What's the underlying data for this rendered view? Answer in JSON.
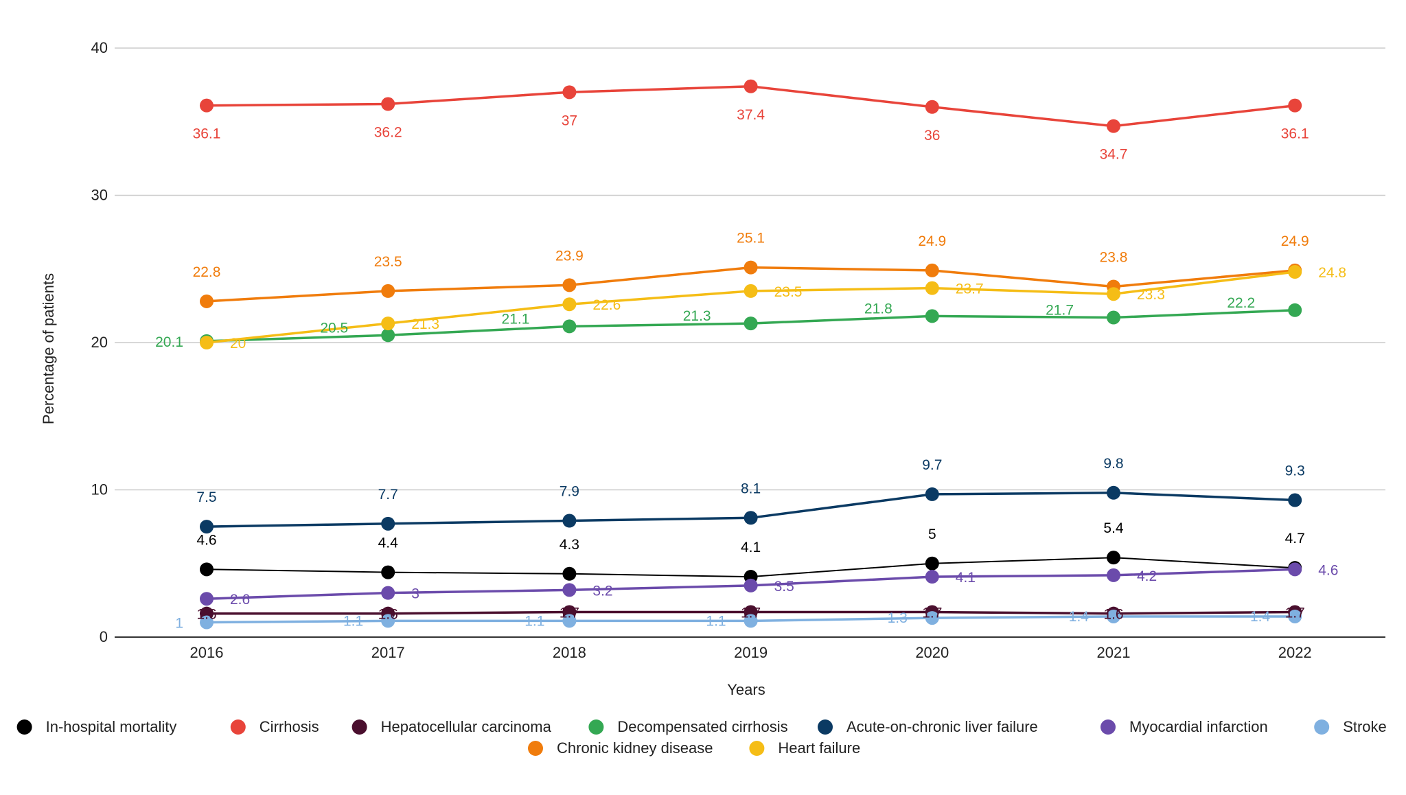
{
  "chart_data": {
    "type": "line",
    "title": "",
    "xlabel": "Years",
    "ylabel": "Percentage of patients",
    "x": [
      "2016",
      "2017",
      "2018",
      "2019",
      "2020",
      "2021",
      "2022"
    ],
    "yticks": [
      "0",
      "10",
      "20",
      "30",
      "40"
    ],
    "ylim": [
      0,
      40
    ],
    "grid": true,
    "legend_position": "bottom",
    "series": [
      {
        "name": "In-hospital mortality",
        "color": "#000000",
        "values": [
          4.6,
          4.4,
          4.3,
          4.1,
          5,
          5.4,
          4.7
        ],
        "labels": [
          "4.6",
          "4.4",
          "4.3",
          "4.1",
          "5",
          "5.4",
          "4.7"
        ]
      },
      {
        "name": "Cirrhosis",
        "color": "#e8443a",
        "values": [
          36.1,
          36.2,
          37,
          37.4,
          36,
          34.7,
          36.1
        ],
        "labels": [
          "36.1",
          "36.2",
          "37",
          "37.4",
          "36",
          "34.7",
          "36.1"
        ]
      },
      {
        "name": "Hepatocellular carcinoma",
        "color": "#4a0f2e",
        "values": [
          1.6,
          1.6,
          1.7,
          1.7,
          1.7,
          1.6,
          1.7
        ],
        "labels": [
          "1.6",
          "1.6",
          "1.7",
          "1.7",
          "1.7",
          "1.6",
          "1.7"
        ]
      },
      {
        "name": "Decompensated cirrhosis",
        "color": "#34a853",
        "values": [
          20.1,
          20.5,
          21.1,
          21.3,
          21.8,
          21.7,
          22.2
        ],
        "labels": [
          "20.1",
          "20.5",
          "21.1",
          "21.3",
          "21.8",
          "21.7",
          "22.2"
        ]
      },
      {
        "name": "Acute-on-chronic liver failure",
        "color": "#0b3a63",
        "values": [
          7.5,
          7.7,
          7.9,
          8.1,
          9.7,
          9.8,
          9.3
        ],
        "labels": [
          "7.5",
          "7.7",
          "7.9",
          "8.1",
          "9.7",
          "9.8",
          "9.3"
        ]
      },
      {
        "name": "Myocardial infarction",
        "color": "#6b4bab",
        "values": [
          2.6,
          3,
          3.2,
          3.5,
          4.1,
          4.2,
          4.6
        ],
        "labels": [
          "2.6",
          "3",
          "3.2",
          "3.5",
          "4.1",
          "4.2",
          "4.6"
        ]
      },
      {
        "name": "Stroke",
        "color": "#7fb0e0",
        "values": [
          1,
          1.1,
          1.1,
          1.1,
          1.3,
          1.4,
          1.4
        ],
        "labels": [
          "1",
          "1.1",
          "1.1",
          "1.1",
          "1.3",
          "1.4",
          "1.4"
        ]
      },
      {
        "name": "Chronic kidney disease",
        "color": "#f07c0c",
        "values": [
          22.8,
          23.5,
          23.9,
          25.1,
          24.9,
          23.8,
          24.9
        ],
        "labels": [
          "22.8",
          "23.5",
          "23.9",
          "25.1",
          "24.9",
          "23.8",
          "24.9"
        ]
      },
      {
        "name": "Heart failure",
        "color": "#f5bd16",
        "values": [
          20,
          21.3,
          22.6,
          23.5,
          23.7,
          23.3,
          24.8
        ],
        "labels": [
          "20",
          "21.3",
          "22.6",
          "23.5",
          "23.7",
          "23.3",
          "24.8"
        ]
      }
    ]
  }
}
